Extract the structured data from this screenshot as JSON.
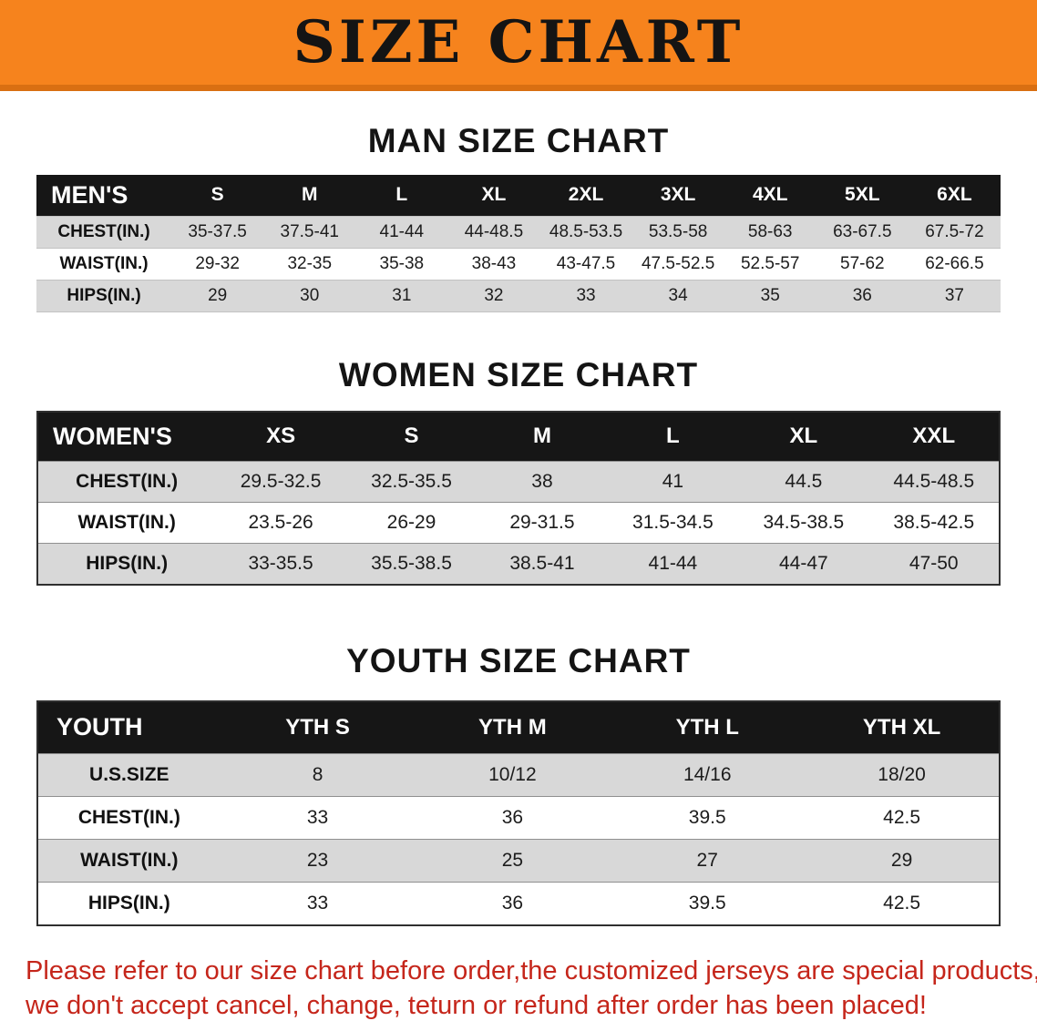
{
  "banner": {
    "title": "SIZE CHART",
    "bg_color": "#f6831d"
  },
  "sections": {
    "men": {
      "heading": "MAN SIZE CHART",
      "table": {
        "header": [
          "MEN'S",
          "S",
          "M",
          "L",
          "XL",
          "2XL",
          "3XL",
          "4XL",
          "5XL",
          "6XL"
        ],
        "rows": [
          {
            "label": "CHEST(IN.)",
            "values": [
              "35-37.5",
              "37.5-41",
              "41-44",
              "44-48.5",
              "48.5-53.5",
              "53.5-58",
              "58-63",
              "63-67.5",
              "67.5-72"
            ]
          },
          {
            "label": "WAIST(IN.)",
            "values": [
              "29-32",
              "32-35",
              "35-38",
              "38-43",
              "43-47.5",
              "47.5-52.5",
              "52.5-57",
              "57-62",
              "62-66.5"
            ]
          },
          {
            "label": "HIPS(IN.)",
            "values": [
              "29",
              "30",
              "31",
              "32",
              "33",
              "34",
              "35",
              "36",
              "37"
            ]
          }
        ]
      }
    },
    "women": {
      "heading": "WOMEN SIZE CHART",
      "table": {
        "header": [
          "WOMEN'S",
          "XS",
          "S",
          "M",
          "L",
          "XL",
          "XXL"
        ],
        "rows": [
          {
            "label": "CHEST(IN.)",
            "values": [
              "29.5-32.5",
              "32.5-35.5",
              "38",
              "41",
              "44.5",
              "44.5-48.5"
            ]
          },
          {
            "label": "WAIST(IN.)",
            "values": [
              "23.5-26",
              "26-29",
              "29-31.5",
              "31.5-34.5",
              "34.5-38.5",
              "38.5-42.5"
            ]
          },
          {
            "label": "HIPS(IN.)",
            "values": [
              "33-35.5",
              "35.5-38.5",
              "38.5-41",
              "41-44",
              "44-47",
              "47-50"
            ]
          }
        ]
      }
    },
    "youth": {
      "heading": "YOUTH SIZE CHART",
      "table": {
        "header": [
          "YOUTH",
          "YTH S",
          "YTH M",
          "YTH L",
          "YTH XL"
        ],
        "rows": [
          {
            "label": "U.S.SIZE",
            "values": [
              "8",
              "10/12",
              "14/16",
              "18/20"
            ]
          },
          {
            "label": "CHEST(IN.)",
            "values": [
              "33",
              "36",
              "39.5",
              "42.5"
            ]
          },
          {
            "label": "WAIST(IN.)",
            "values": [
              "23",
              "25",
              "27",
              "29"
            ]
          },
          {
            "label": "HIPS(IN.)",
            "values": [
              "33",
              "36",
              "39.5",
              "42.5"
            ]
          }
        ]
      }
    }
  },
  "disclaimer": {
    "line1": "Please refer to our size chart before order,the customized jerseys are special products,",
    "line2": "we don't accept cancel, change, teturn or refund after order has been placed!",
    "color": "#c5261b"
  }
}
